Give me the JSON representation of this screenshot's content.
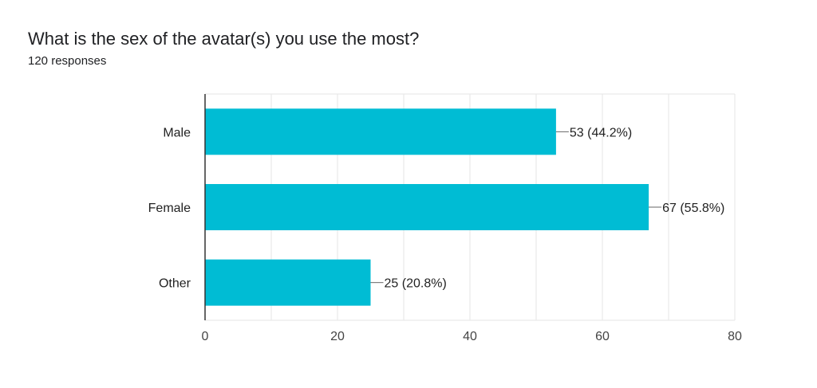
{
  "title": "What is the sex of the avatar(s) you use the most?",
  "subtitle": "120 responses",
  "colors": {
    "bar": "#00BCD4",
    "grid": "#e6e6e6",
    "axis": "#333333",
    "connector": "#666666"
  },
  "chart_data": {
    "type": "bar",
    "orientation": "horizontal",
    "categories": [
      "Male",
      "Female",
      "Other"
    ],
    "values": [
      53,
      67,
      25
    ],
    "labels": [
      "53 (44.2%)",
      "67 (55.8%)",
      "25 (20.8%)"
    ],
    "xticks": [
      0,
      20,
      40,
      60,
      80
    ],
    "xlim": [
      0,
      80
    ],
    "grid": true
  }
}
